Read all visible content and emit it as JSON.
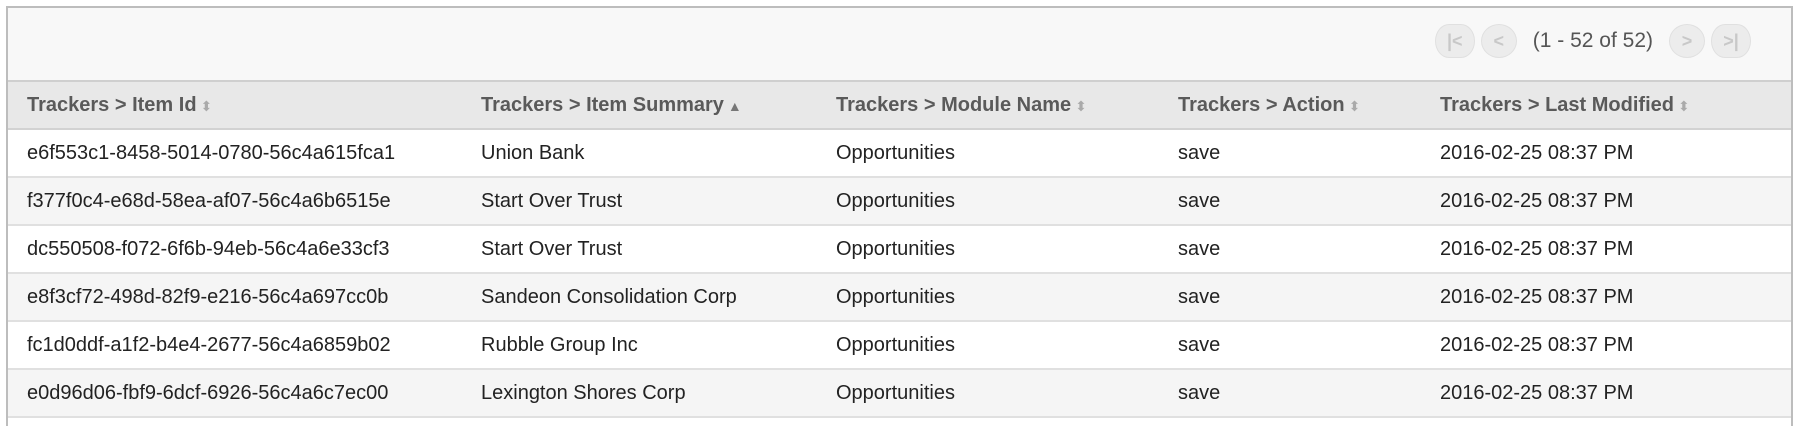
{
  "pager": {
    "first_icon": "first-page-icon",
    "prev_icon": "prev-page-icon",
    "next_icon": "next-page-icon",
    "last_icon": "last-page-icon",
    "count": "(1 - 52 of 52)"
  },
  "columns": [
    {
      "label": "Trackers > Item Id",
      "sort": "none"
    },
    {
      "label": "Trackers > Item Summary",
      "sort": "ascending"
    },
    {
      "label": "Trackers > Module Name",
      "sort": "none"
    },
    {
      "label": "Trackers > Action",
      "sort": "none"
    },
    {
      "label": "Trackers > Last Modified",
      "sort": "none"
    }
  ],
  "rows": [
    [
      "e6f553c1-8458-5014-0780-56c4a615fca1",
      "Union Bank",
      "Opportunities",
      "save",
      "2016-02-25 08:37 PM"
    ],
    [
      "f377f0c4-e68d-58ea-af07-56c4a6b6515e",
      "Start Over Trust",
      "Opportunities",
      "save",
      "2016-02-25 08:37 PM"
    ],
    [
      "dc550508-f072-6f6b-94eb-56c4a6e33cf3",
      "Start Over Trust",
      "Opportunities",
      "save",
      "2016-02-25 08:37 PM"
    ],
    [
      "e8f3cf72-498d-82f9-e216-56c4a697cc0b",
      "Sandeon Consolidation Corp",
      "Opportunities",
      "save",
      "2016-02-25 08:37 PM"
    ],
    [
      "fc1d0ddf-a1f2-b4e4-2677-56c4a6859b02",
      "Rubble Group Inc",
      "Opportunities",
      "save",
      "2016-02-25 08:37 PM"
    ],
    [
      "e0d96d06-fbf9-6dcf-6926-56c4a6c7ec00",
      "Lexington Shores Corp",
      "Opportunities",
      "save",
      "2016-02-25 08:37 PM"
    ]
  ]
}
